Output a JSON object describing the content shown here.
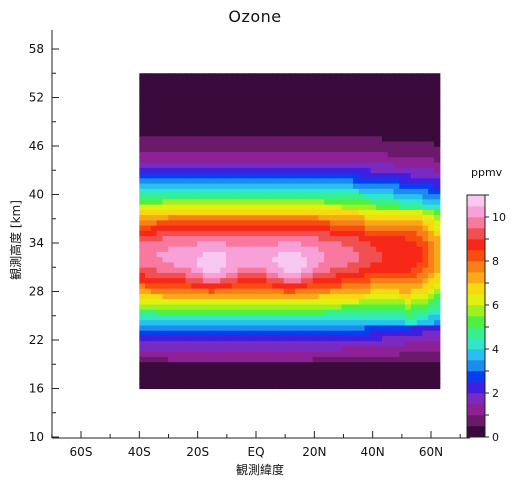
{
  "chart_data": {
    "type": "heatmap",
    "title": "Ozone",
    "xlabel": "観測緯度",
    "ylabel": "観測高度 [km]",
    "x_ticks": [
      {
        "value": -60,
        "label": "60S"
      },
      {
        "value": -40,
        "label": "40S"
      },
      {
        "value": -20,
        "label": "20S"
      },
      {
        "value": 0,
        "label": "EQ"
      },
      {
        "value": 20,
        "label": "20N"
      },
      {
        "value": 40,
        "label": "40N"
      },
      {
        "value": 60,
        "label": "60N"
      }
    ],
    "xlim": [
      -70,
      70
    ],
    "y_ticks": [
      10,
      16,
      22,
      28,
      34,
      40,
      46,
      52,
      58
    ],
    "ylim": [
      10,
      60
    ],
    "data_extent": {
      "x": [
        -40,
        63
      ],
      "y": [
        16,
        55
      ]
    },
    "colorbar": {
      "label": "ppmv",
      "ticks": [
        0,
        2,
        4,
        6,
        8,
        10
      ],
      "range": [
        0,
        11
      ],
      "colors": [
        "#3a0a3a",
        "#6b1a6b",
        "#8e2096",
        "#7a2ac0",
        "#3f1fe0",
        "#0a3cf0",
        "#1a8cf0",
        "#28c0f0",
        "#30e8c8",
        "#38f088",
        "#50f040",
        "#a0f020",
        "#e0f010",
        "#f8d810",
        "#f8a818",
        "#f88018",
        "#f84c10",
        "#f82818",
        "#f05050",
        "#f878a0",
        "#f8a0d8",
        "#f8c8f0"
      ]
    },
    "grid": false
  }
}
